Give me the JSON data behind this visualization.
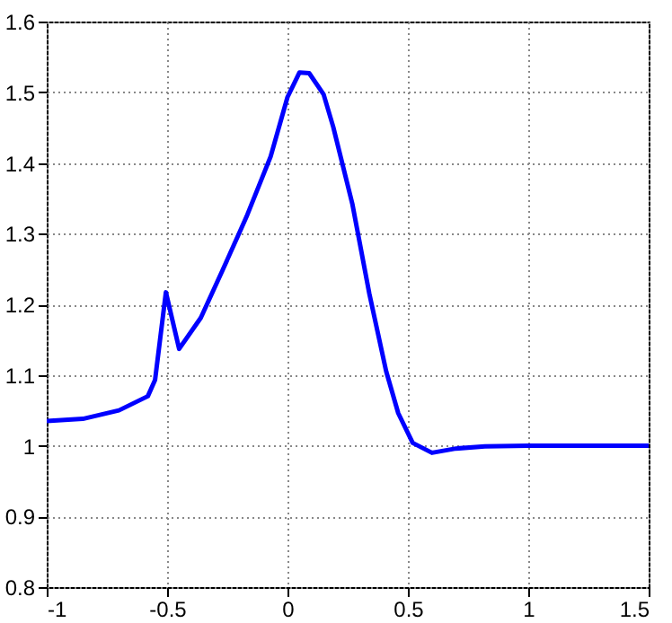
{
  "chart_data": {
    "type": "line",
    "x": [
      -1,
      -0.85,
      -0.7,
      -0.58,
      -0.55,
      -0.505,
      -0.45,
      -0.36,
      -0.27,
      -0.17,
      -0.07,
      0,
      0.05,
      0.09,
      0.15,
      0.19,
      0.27,
      0.34,
      0.41,
      0.46,
      0.52,
      0.6,
      0.7,
      0.82,
      1,
      1.5
    ],
    "series": [
      {
        "color": "#0000ff",
        "values": [
          1.035,
          1.038,
          1.05,
          1.07,
          1.093,
          1.217,
          1.137,
          1.181,
          1.248,
          1.324,
          1.409,
          1.493,
          1.528,
          1.527,
          1.497,
          1.451,
          1.341,
          1.215,
          1.105,
          1.046,
          1.004,
          0.99,
          0.996,
          0.999,
          1,
          1
        ]
      }
    ],
    "xlim": [
      -1,
      1.5
    ],
    "xticks": [
      -1,
      -0.5,
      0,
      0.5,
      1,
      1.5
    ],
    "ylim": [
      0.8,
      1.6
    ],
    "yticks": [
      0.8,
      0.9,
      1,
      1.1,
      1.2,
      1.3,
      1.4,
      1.5,
      1.6
    ],
    "grid": true,
    "marker": "none",
    "line_style": "solid"
  }
}
